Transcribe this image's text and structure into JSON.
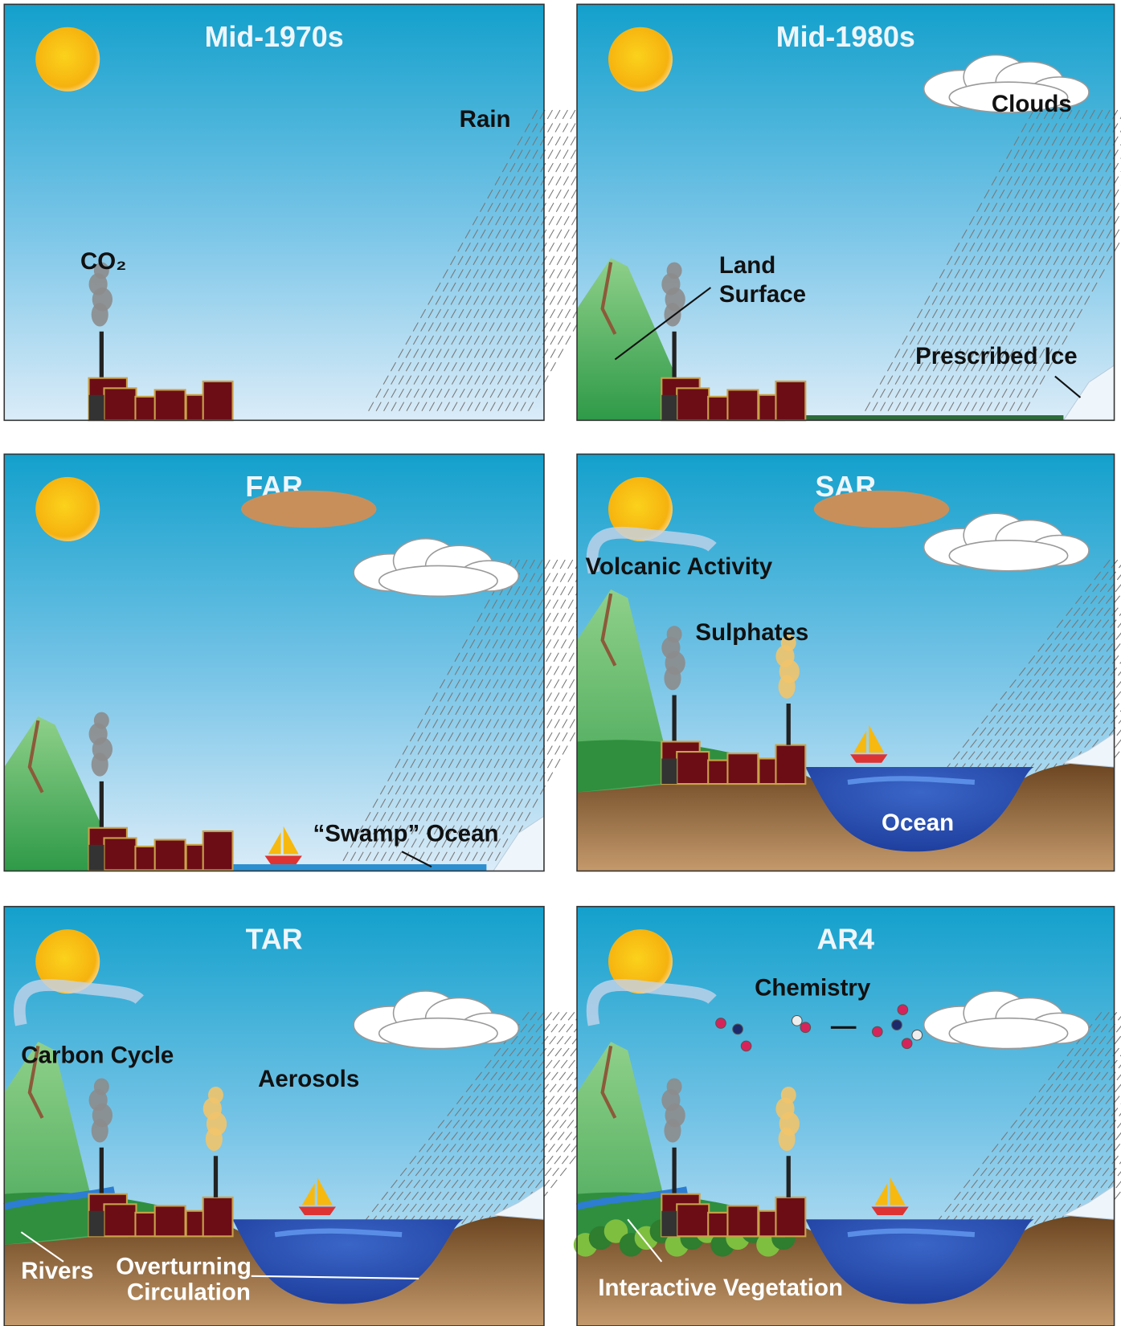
{
  "panels": [
    {
      "title": "Mid-1970s",
      "labels": [
        "Rain",
        "CO₂"
      ]
    },
    {
      "title": "Mid-1980s",
      "labels": [
        "Clouds",
        "Land",
        "Surface",
        "Prescribed Ice"
      ]
    },
    {
      "title": "FAR",
      "labels": [
        "“Swamp” Ocean"
      ]
    },
    {
      "title": "SAR",
      "labels": [
        "Volcanic Activity",
        "Sulphates",
        "Ocean"
      ]
    },
    {
      "title": "TAR",
      "labels": [
        "Carbon Cycle",
        "Aerosols",
        "Rivers",
        "Overturning",
        "Circulation"
      ]
    },
    {
      "title": "AR4",
      "labels": [
        "Chemistry",
        "Interactive Vegetation"
      ]
    }
  ]
}
